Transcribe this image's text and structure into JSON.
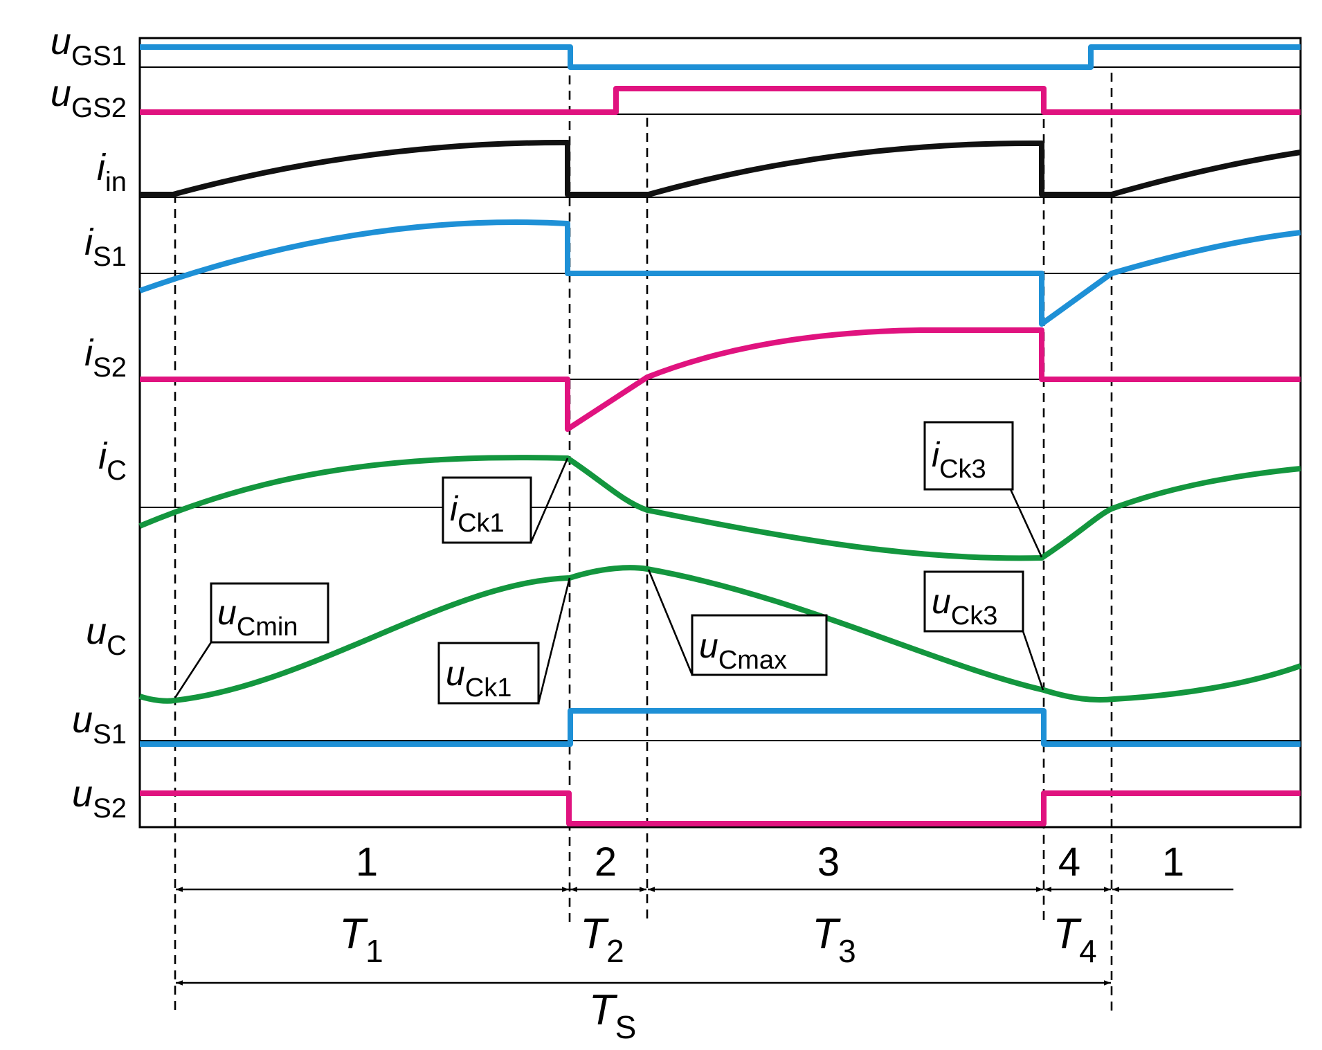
{
  "colors": {
    "blue": "#1e90d6",
    "magenta": "#e0137f",
    "black": "#111111",
    "green": "#13963e"
  },
  "signals": [
    {
      "key": "uGS1",
      "main": "u",
      "sub": "GS1",
      "color": "blue"
    },
    {
      "key": "uGS2",
      "main": "u",
      "sub": "GS2",
      "color": "magenta"
    },
    {
      "key": "iin",
      "main": "i",
      "sub": "in",
      "color": "black"
    },
    {
      "key": "iS1",
      "main": "i",
      "sub": "S1",
      "color": "blue"
    },
    {
      "key": "iS2",
      "main": "i",
      "sub": "S2",
      "color": "magenta"
    },
    {
      "key": "iC",
      "main": "i",
      "sub": "C",
      "color": "green"
    },
    {
      "key": "uC",
      "main": "u",
      "sub": "C",
      "color": "green"
    },
    {
      "key": "uS1",
      "main": "u",
      "sub": "S1",
      "color": "blue"
    },
    {
      "key": "uS2",
      "main": "u",
      "sub": "S2",
      "color": "magenta"
    }
  ],
  "annotations": [
    {
      "key": "iCk1",
      "main": "i",
      "sub": "Ck1"
    },
    {
      "key": "iCk3",
      "main": "i",
      "sub": "Ck3"
    },
    {
      "key": "uCmin",
      "main": "u",
      "sub": "Cmin"
    },
    {
      "key": "uCk1",
      "main": "u",
      "sub": "Ck1"
    },
    {
      "key": "uCmax",
      "main": "u",
      "sub": "Cmax"
    },
    {
      "key": "uCk3",
      "main": "u",
      "sub": "Ck3"
    }
  ],
  "phases": [
    "1",
    "2",
    "3",
    "4",
    "1"
  ],
  "periods": [
    {
      "key": "T1",
      "main": "T",
      "sub": "1"
    },
    {
      "key": "T2",
      "main": "T",
      "sub": "2"
    },
    {
      "key": "T3",
      "main": "T",
      "sub": "3"
    },
    {
      "key": "T4",
      "main": "T",
      "sub": "4"
    },
    {
      "key": "TS",
      "main": "T",
      "sub": "S"
    }
  ]
}
